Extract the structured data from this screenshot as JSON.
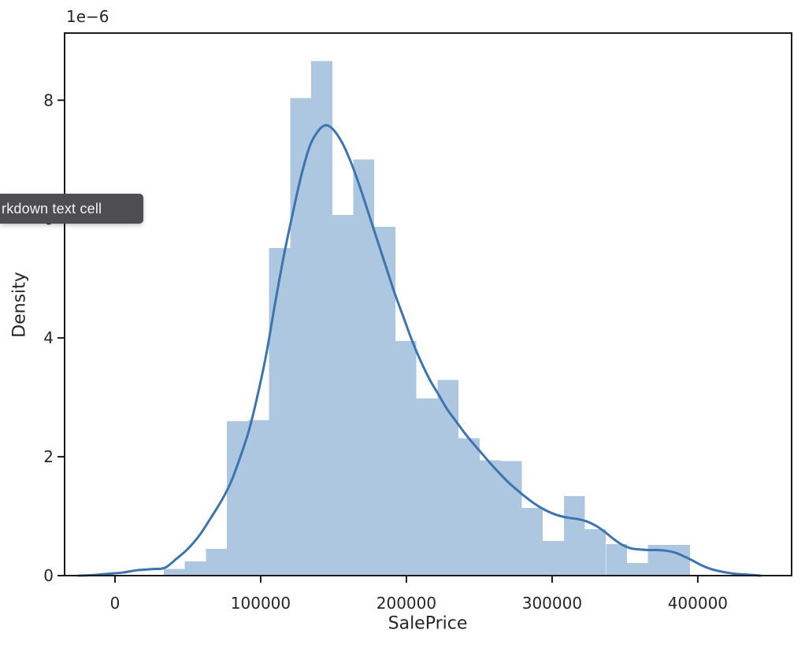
{
  "tooltip": {
    "text": "rkdown text cell",
    "bg_color": "#4e4e52",
    "text_color": "#f2f2f2"
  },
  "chart_data": {
    "type": "bar",
    "subtype": "histogram-with-kde",
    "title": "",
    "xlabel": "SalePrice",
    "ylabel": "Density",
    "offset_label": "1e−6",
    "xlim": [
      -34600,
      464400
    ],
    "ylim_1e6": [
      0,
      9.13
    ],
    "x_ticks": [
      0,
      100000,
      200000,
      300000,
      400000
    ],
    "x_tick_labels": [
      "0",
      "100000",
      "200000",
      "300000",
      "400000"
    ],
    "y_ticks_1e6": [
      0,
      2,
      4,
      6,
      8
    ],
    "y_tick_labels": [
      "0",
      "2",
      "4",
      "6",
      "8"
    ],
    "grid": false,
    "legend": "none",
    "histogram": {
      "bin_start": 33500,
      "bin_width": 14450,
      "bin_edges": [
        33500,
        47950,
        62400,
        76850,
        91300,
        105750,
        120200,
        134650,
        149100,
        163550,
        178000,
        192450,
        206900,
        221350,
        235800,
        250250,
        264700,
        279150,
        293600,
        308050,
        322500,
        336950,
        351400,
        365850,
        380300,
        394750
      ],
      "densities_1e6": [
        0.11,
        0.24,
        0.45,
        2.6,
        2.62,
        5.51,
        8.04,
        8.66,
        6.07,
        7.0,
        5.87,
        3.95,
        2.98,
        3.29,
        2.31,
        1.94,
        1.93,
        1.14,
        0.58,
        1.34,
        0.78,
        0.53,
        0.21,
        0.52,
        0.52
      ]
    },
    "kde": {
      "points_price_density1e6": [
        [
          -25000,
          0.0
        ],
        [
          -15000,
          0.01
        ],
        [
          -5000,
          0.03
        ],
        [
          5000,
          0.05
        ],
        [
          15000,
          0.09
        ],
        [
          25000,
          0.11
        ],
        [
          34000,
          0.13
        ],
        [
          42000,
          0.28
        ],
        [
          50000,
          0.45
        ],
        [
          58000,
          0.68
        ],
        [
          66000,
          0.98
        ],
        [
          74000,
          1.3
        ],
        [
          80000,
          1.6
        ],
        [
          86000,
          2.0
        ],
        [
          92000,
          2.45
        ],
        [
          98000,
          3.05
        ],
        [
          104000,
          3.75
        ],
        [
          110000,
          4.6
        ],
        [
          116000,
          5.4
        ],
        [
          122000,
          6.1
        ],
        [
          128000,
          6.75
        ],
        [
          134000,
          7.25
        ],
        [
          140000,
          7.5
        ],
        [
          145000,
          7.58
        ],
        [
          150000,
          7.5
        ],
        [
          156000,
          7.28
        ],
        [
          162000,
          6.95
        ],
        [
          168000,
          6.55
        ],
        [
          174000,
          6.1
        ],
        [
          180000,
          5.65
        ],
        [
          186000,
          5.2
        ],
        [
          192000,
          4.75
        ],
        [
          198000,
          4.35
        ],
        [
          204000,
          3.95
        ],
        [
          210000,
          3.6
        ],
        [
          216000,
          3.3
        ],
        [
          222000,
          3.05
        ],
        [
          228000,
          2.8
        ],
        [
          234000,
          2.6
        ],
        [
          240000,
          2.4
        ],
        [
          246000,
          2.22
        ],
        [
          252000,
          2.05
        ],
        [
          258000,
          1.88
        ],
        [
          264000,
          1.72
        ],
        [
          270000,
          1.57
        ],
        [
          276000,
          1.44
        ],
        [
          282000,
          1.32
        ],
        [
          288000,
          1.21
        ],
        [
          294000,
          1.12
        ],
        [
          300000,
          1.05
        ],
        [
          306000,
          1.0
        ],
        [
          312000,
          0.97
        ],
        [
          318000,
          0.95
        ],
        [
          324000,
          0.91
        ],
        [
          330000,
          0.84
        ],
        [
          336000,
          0.74
        ],
        [
          342000,
          0.62
        ],
        [
          348000,
          0.52
        ],
        [
          354000,
          0.46
        ],
        [
          360000,
          0.44
        ],
        [
          366000,
          0.43
        ],
        [
          372000,
          0.43
        ],
        [
          378000,
          0.42
        ],
        [
          384000,
          0.39
        ],
        [
          390000,
          0.33
        ],
        [
          396000,
          0.26
        ],
        [
          402000,
          0.18
        ],
        [
          408000,
          0.12
        ],
        [
          414000,
          0.08
        ],
        [
          420000,
          0.05
        ],
        [
          426000,
          0.03
        ],
        [
          432000,
          0.02
        ],
        [
          438000,
          0.01
        ],
        [
          443000,
          0.0
        ]
      ]
    },
    "colors": {
      "bar_fill": "#aec7e0",
      "kde_line": "#3c74b0",
      "axis": "#1a1a1a",
      "text": "#262626"
    }
  }
}
